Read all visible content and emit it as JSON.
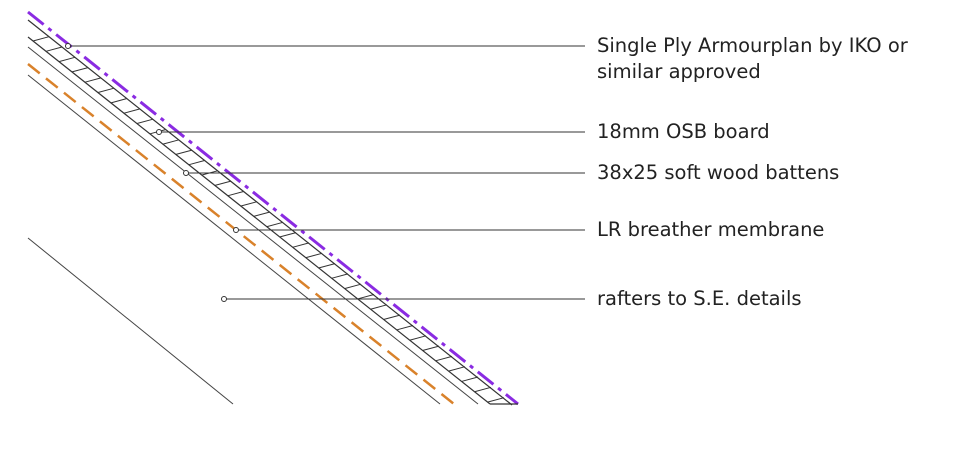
{
  "colors": {
    "membrane_line": "#8a2be2",
    "breather_dashed": "#d9822b",
    "line_ink": "#333333",
    "background": "#ffffff"
  },
  "labels": {
    "single_ply_line1": "Single Ply Armourplan by IKO or",
    "single_ply_line2": "similar approved",
    "osb_board": "18mm OSB board",
    "battens": "38x25 soft wood battens",
    "breather_membrane": "LR breather membrane",
    "rafters": "rafters to S.E. details"
  }
}
